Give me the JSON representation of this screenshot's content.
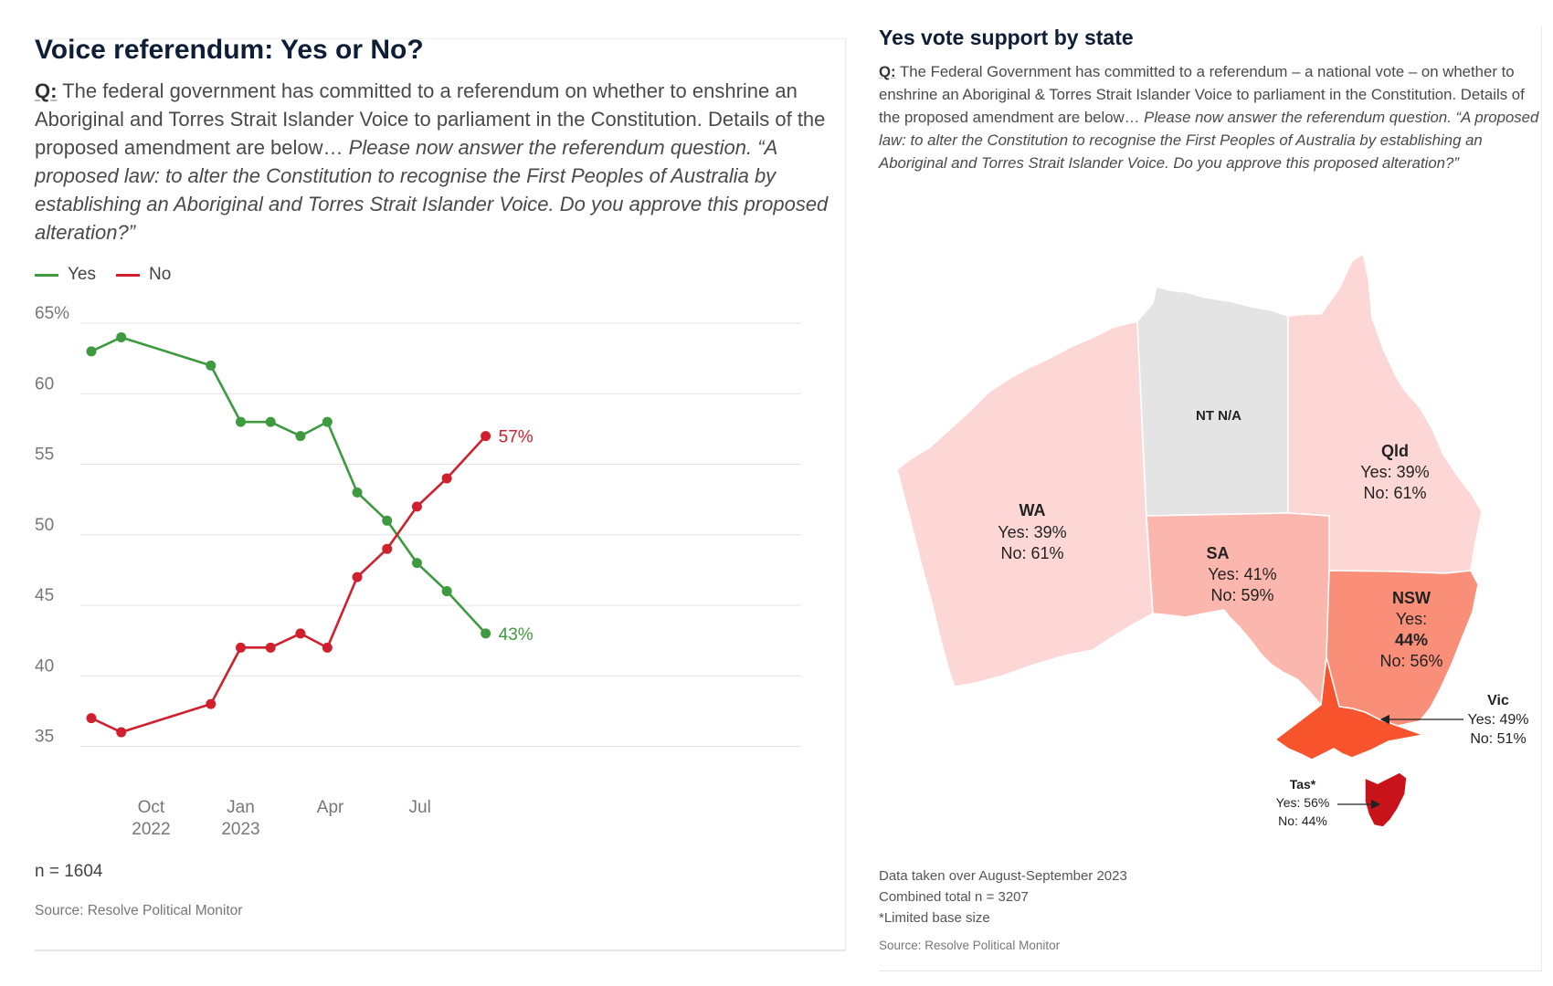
{
  "left": {
    "title": "Voice referendum: Yes or No?",
    "question_label": "Q:",
    "question_text": " The federal government has committed to a referendum on whether to enshrine an Aboriginal and Torres Strait Islander Voice to parliament in the Constitution. Details of the proposed amendment are below… ",
    "question_italic": "Please now answer the referendum question. “A proposed law: to alter the Constitution to recognise the First Peoples of Australia by establishing an Aboriginal and Torres Strait Islander Voice. Do you approve this proposed alteration?”",
    "n_label": "n = 1604",
    "source": "Source: Resolve Political Monitor"
  },
  "right": {
    "title": "Yes vote support by state",
    "question_label": "Q:",
    "question_text": " The Federal Government has committed to a referendum – a national vote – on whether to enshrine an Aboriginal & Torres Strait Islander Voice to parliament in the Constitution. Details of the proposed amendment are below… ",
    "question_italic": "Please now answer the referendum question. “A proposed law: to alter the Constitution to recognise the First Peoples of Australia by establishing an Aboriginal and Torres Strait Islander Voice. Do you approve this proposed alteration?”",
    "notes": [
      "Data taken over August-September 2023",
      "Combined total n = 3207",
      "*Limited base size"
    ],
    "source": "Source: Resolve Political Monitor"
  },
  "colors": {
    "yes": "#3d9a3f",
    "no": "#d0202e",
    "grid": "#e4e4e4",
    "axis_text": "#777777",
    "nt": "#e4e4e4",
    "wa": "#fdd7d5",
    "qld": "#fdd7d5",
    "sa": "#fbb7ad",
    "nsw": "#f98f78",
    "vic": "#f7532c",
    "tas": "#c8131b"
  },
  "chart_data": [
    {
      "type": "line",
      "title": "Voice referendum: Yes or No?",
      "xlabel": "",
      "ylabel": "",
      "ylim": [
        35,
        65
      ],
      "y_ticks": [
        "65%",
        "60",
        "55",
        "50",
        "45",
        "40",
        "35"
      ],
      "y_tick_values": [
        65,
        60,
        55,
        50,
        45,
        40,
        35
      ],
      "x_ticks": [
        {
          "label": "Oct",
          "sub": "2022",
          "month": 2.0
        },
        {
          "label": "Jan",
          "sub": "2023",
          "month": 5.0
        },
        {
          "label": "Apr",
          "sub": "",
          "month": 8.0
        },
        {
          "label": "Jul",
          "sub": "",
          "month": 11.0
        }
      ],
      "x_months": [
        0.0,
        1.0,
        4.0,
        5.0,
        6.0,
        7.0,
        7.9,
        8.9,
        9.9,
        10.9,
        11.9,
        13.2
      ],
      "series": [
        {
          "name": "Yes",
          "color": "#3d9a3f",
          "values": [
            63,
            64,
            62,
            58,
            58,
            57,
            58,
            53,
            51,
            48,
            46,
            43
          ],
          "end_label": "43%"
        },
        {
          "name": "No",
          "color": "#d0202e",
          "values": [
            37,
            36,
            38,
            42,
            42,
            43,
            42,
            47,
            49,
            52,
            54,
            57
          ],
          "end_label": "57%"
        }
      ],
      "legend": "top-left"
    },
    {
      "type": "choropleth",
      "title": "Yes vote support by state",
      "regions": [
        {
          "state": "WA",
          "yes": "Yes: 39%",
          "no": "No: 61%",
          "yes_value": 39,
          "no_value": 61
        },
        {
          "state": "NT N/A",
          "yes": "",
          "no": ""
        },
        {
          "state": "SA",
          "yes": "Yes: 41%",
          "no": "No: 59%",
          "yes_value": 41,
          "no_value": 59
        },
        {
          "state": "Qld",
          "yes": "Yes: 39%",
          "no": "No: 61%",
          "yes_value": 39,
          "no_value": 61
        },
        {
          "state": "NSW",
          "yes": "Yes:",
          "yes_pct": "44%",
          "no": "No: 56%",
          "yes_value": 44,
          "no_value": 56
        },
        {
          "state": "Vic",
          "yes": "Yes: 49%",
          "no": "No: 51%",
          "yes_value": 49,
          "no_value": 51
        },
        {
          "state": "Tas*",
          "yes": "Yes: 56%",
          "no": "No: 44%",
          "yes_value": 56,
          "no_value": 44
        }
      ]
    }
  ]
}
